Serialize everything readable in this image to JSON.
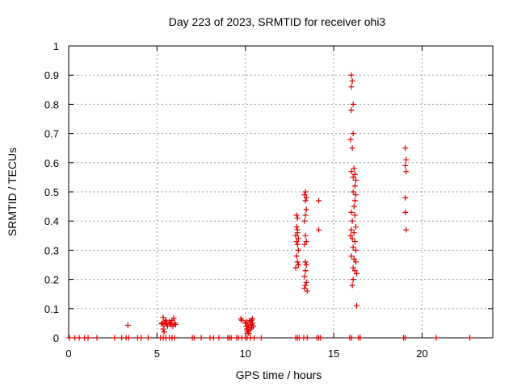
{
  "chart_data": {
    "type": "scatter",
    "title": "Day 223 of 2023, SRMTID for receiver ohi3",
    "xlabel": "GPS time / hours",
    "ylabel": "SRMTID / TECUs",
    "xlim": [
      0,
      24
    ],
    "ylim": [
      0,
      1
    ],
    "xticks": [
      0,
      5,
      10,
      15,
      20
    ],
    "xtick_labels": [
      "0",
      "5",
      "10",
      "15",
      "20"
    ],
    "yticks": [
      0,
      0.1,
      0.2,
      0.3,
      0.4,
      0.5,
      0.6,
      0.7,
      0.8,
      0.9,
      1
    ],
    "ytick_labels": [
      "0",
      "0.1",
      "0.2",
      "0.3",
      "0.4",
      "0.5",
      "0.6",
      "0.7",
      "0.8",
      "0.9",
      "1"
    ],
    "grid": true,
    "marker": "+",
    "color": "#e00000",
    "series": [
      {
        "name": "SRMTID",
        "points": [
          [
            0.05,
            0
          ],
          [
            0.35,
            0
          ],
          [
            0.6,
            0
          ],
          [
            0.9,
            0
          ],
          [
            1.1,
            0
          ],
          [
            1.6,
            0
          ],
          [
            2.6,
            0
          ],
          [
            3.0,
            0
          ],
          [
            3.25,
            0
          ],
          [
            3.4,
            0
          ],
          [
            3.9,
            0
          ],
          [
            4.1,
            0
          ],
          [
            4.5,
            0
          ],
          [
            5.2,
            0
          ],
          [
            5.35,
            0
          ],
          [
            5.5,
            0
          ],
          [
            5.7,
            0
          ],
          [
            5.85,
            0
          ],
          [
            6.0,
            0
          ],
          [
            7.0,
            0
          ],
          [
            7.1,
            0
          ],
          [
            7.5,
            0
          ],
          [
            8.0,
            0
          ],
          [
            8.2,
            0
          ],
          [
            8.5,
            0
          ],
          [
            9.0,
            0
          ],
          [
            9.1,
            0
          ],
          [
            9.2,
            0
          ],
          [
            9.5,
            0
          ],
          [
            9.6,
            0
          ],
          [
            9.8,
            0
          ],
          [
            10.0,
            0
          ],
          [
            10.1,
            0
          ],
          [
            10.3,
            0
          ],
          [
            10.5,
            0
          ],
          [
            10.9,
            0
          ],
          [
            12.85,
            0
          ],
          [
            12.95,
            0
          ],
          [
            13.05,
            0
          ],
          [
            13.3,
            0
          ],
          [
            13.5,
            0
          ],
          [
            14.05,
            0
          ],
          [
            14.15,
            0
          ],
          [
            14.25,
            0
          ],
          [
            15.9,
            0
          ],
          [
            16.0,
            0
          ],
          [
            16.4,
            0
          ],
          [
            16.5,
            0
          ],
          [
            18.95,
            0
          ],
          [
            19.05,
            0
          ],
          [
            20.8,
            0
          ],
          [
            22.7,
            0
          ],
          [
            3.35,
            0.043
          ],
          [
            5.35,
            0.07
          ],
          [
            5.3,
            0.05
          ],
          [
            5.4,
            0.045
          ],
          [
            5.45,
            0.055
          ],
          [
            5.35,
            0.03
          ],
          [
            5.4,
            0.02
          ],
          [
            5.5,
            0.06
          ],
          [
            5.55,
            0.048
          ],
          [
            5.6,
            0.04
          ],
          [
            5.7,
            0.055
          ],
          [
            5.75,
            0.05
          ],
          [
            5.8,
            0.045
          ],
          [
            5.85,
            0.06
          ],
          [
            5.9,
            0.04
          ],
          [
            5.95,
            0.067
          ],
          [
            6.0,
            0.05
          ],
          [
            6.05,
            0.045
          ],
          [
            5.25,
            0.048
          ],
          [
            9.75,
            0.065
          ],
          [
            9.8,
            0.06
          ],
          [
            10.0,
            0.05
          ],
          [
            10.05,
            0.04
          ],
          [
            10.1,
            0.03
          ],
          [
            10.15,
            0.02
          ],
          [
            10.2,
            0.035
          ],
          [
            10.25,
            0.055
          ],
          [
            10.3,
            0.045
          ],
          [
            10.35,
            0.06
          ],
          [
            10.4,
            0.05
          ],
          [
            10.45,
            0.04
          ],
          [
            10.1,
            0.025
          ],
          [
            10.2,
            0.015
          ],
          [
            10.3,
            0.03
          ],
          [
            10.15,
            0.045
          ],
          [
            10.25,
            0.06
          ],
          [
            10.35,
            0.035
          ],
          [
            10.05,
            0.055
          ],
          [
            10.4,
            0.065
          ],
          [
            12.9,
            0.42
          ],
          [
            12.95,
            0.41
          ],
          [
            12.9,
            0.38
          ],
          [
            12.95,
            0.37
          ],
          [
            12.85,
            0.35
          ],
          [
            12.9,
            0.33
          ],
          [
            12.95,
            0.32
          ],
          [
            13.0,
            0.3
          ],
          [
            12.9,
            0.28
          ],
          [
            12.95,
            0.26
          ],
          [
            12.85,
            0.24
          ],
          [
            13.0,
            0.34
          ],
          [
            12.95,
            0.36
          ],
          [
            13.0,
            0.25
          ],
          [
            13.4,
            0.5
          ],
          [
            13.35,
            0.49
          ],
          [
            13.4,
            0.47
          ],
          [
            13.45,
            0.44
          ],
          [
            13.4,
            0.42
          ],
          [
            13.35,
            0.4
          ],
          [
            13.4,
            0.35
          ],
          [
            13.45,
            0.33
          ],
          [
            13.35,
            0.32
          ],
          [
            13.4,
            0.26
          ],
          [
            13.45,
            0.25
          ],
          [
            13.4,
            0.23
          ],
          [
            13.35,
            0.21
          ],
          [
            13.45,
            0.19
          ],
          [
            13.4,
            0.18
          ],
          [
            13.35,
            0.17
          ],
          [
            13.5,
            0.16
          ],
          [
            13.45,
            0.48
          ],
          [
            14.15,
            0.47
          ],
          [
            14.15,
            0.37
          ],
          [
            16.0,
            0.9
          ],
          [
            16.05,
            0.88
          ],
          [
            16.0,
            0.86
          ],
          [
            16.1,
            0.8
          ],
          [
            16.0,
            0.78
          ],
          [
            16.1,
            0.7
          ],
          [
            15.95,
            0.68
          ],
          [
            16.05,
            0.65
          ],
          [
            16.0,
            0.57
          ],
          [
            16.15,
            0.58
          ],
          [
            16.2,
            0.56
          ],
          [
            16.1,
            0.55
          ],
          [
            16.25,
            0.54
          ],
          [
            16.2,
            0.52
          ],
          [
            16.1,
            0.5
          ],
          [
            16.25,
            0.49
          ],
          [
            16.2,
            0.47
          ],
          [
            16.15,
            0.45
          ],
          [
            16.0,
            0.43
          ],
          [
            16.2,
            0.42
          ],
          [
            16.05,
            0.4
          ],
          [
            16.25,
            0.38
          ],
          [
            16.15,
            0.36
          ],
          [
            15.95,
            0.35
          ],
          [
            16.05,
            0.34
          ],
          [
            16.2,
            0.33
          ],
          [
            16.1,
            0.31
          ],
          [
            16.25,
            0.3
          ],
          [
            16.0,
            0.28
          ],
          [
            16.15,
            0.27
          ],
          [
            16.25,
            0.26
          ],
          [
            16.1,
            0.24
          ],
          [
            16.2,
            0.23
          ],
          [
            16.3,
            0.22
          ],
          [
            16.1,
            0.2
          ],
          [
            16.05,
            0.18
          ],
          [
            16.0,
            0.37
          ],
          [
            16.3,
            0.11
          ],
          [
            19.05,
            0.65
          ],
          [
            19.1,
            0.61
          ],
          [
            19.05,
            0.59
          ],
          [
            19.1,
            0.57
          ],
          [
            19.05,
            0.48
          ],
          [
            19.05,
            0.43
          ],
          [
            19.1,
            0.37
          ]
        ]
      }
    ]
  }
}
